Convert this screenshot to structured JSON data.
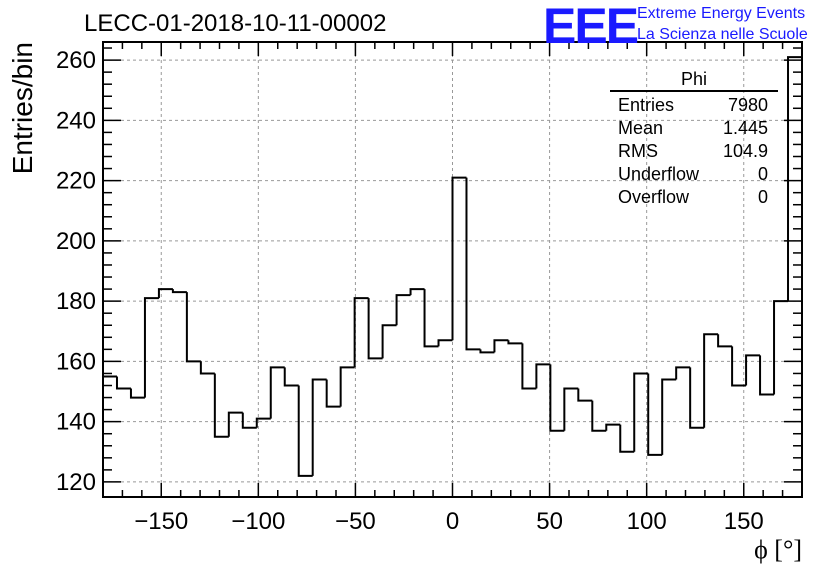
{
  "header": {
    "title": "LECC-01-2018-10-11-00002",
    "logo": "EEE",
    "logo_line1": "Extreme Energy Events",
    "logo_line2": "La Scienza nelle Scuole"
  },
  "stats_box": {
    "title": "Phi",
    "rows": [
      {
        "label": "Entries",
        "value": "7980"
      },
      {
        "label": "Mean",
        "value": "1.445"
      },
      {
        "label": "RMS",
        "value": "104.9"
      },
      {
        "label": "Underflow",
        "value": "0"
      },
      {
        "label": "Overflow",
        "value": "0"
      }
    ]
  },
  "chart_data": {
    "type": "histogram",
    "title": "LECC-01-2018-10-11-00002",
    "xlabel": "ϕ [°]",
    "ylabel": "Entries/bin",
    "xlim": [
      -180,
      180
    ],
    "ylim": [
      115,
      266
    ],
    "bin_width": 7.2,
    "x_ticks": [
      -150,
      -100,
      -50,
      0,
      50,
      100,
      150
    ],
    "x_tick_labels": [
      "−150",
      "−100",
      "−50",
      "0",
      "50",
      "100",
      "150"
    ],
    "y_ticks": [
      120,
      140,
      160,
      180,
      200,
      220,
      240,
      260
    ],
    "grid": true,
    "values": [
      155,
      151,
      148,
      181,
      184,
      183,
      160,
      156,
      135,
      143,
      138,
      141,
      158,
      152,
      122,
      154,
      145,
      158,
      181,
      161,
      172,
      182,
      184,
      165,
      167,
      221,
      164,
      163,
      167,
      166,
      151,
      159,
      137,
      151,
      147,
      137,
      139,
      130,
      156,
      129,
      154,
      158,
      138,
      169,
      165,
      152,
      162,
      149,
      180,
      261
    ],
    "color": "#000000",
    "grid_color": "#999999"
  }
}
